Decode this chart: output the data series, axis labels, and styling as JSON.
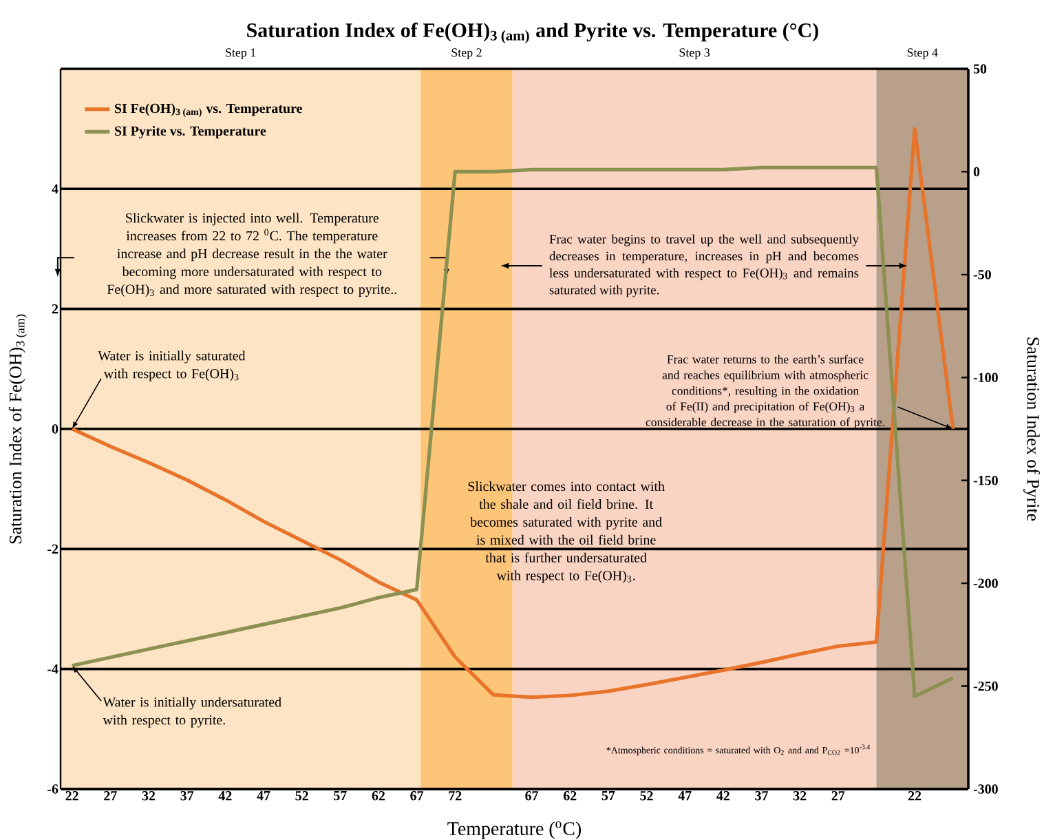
{
  "chart_data": {
    "type": "line",
    "title": "Saturation Index of Fe(OH)$_{3 (am)}$ and Pyrite vs. Temperature (°C)",
    "xlabel": "Temperature ($^{o}$C)",
    "ylabel": "Saturation Index of Fe(OH)$_{3 (am)}$",
    "y2label": "Saturation Index of Pyrite",
    "categories": [
      "22",
      "27",
      "32",
      "37",
      "42",
      "47",
      "52",
      "57",
      "62",
      "67",
      "72",
      null,
      "67",
      "62",
      "57",
      "52",
      "47",
      "42",
      "37",
      "32",
      "27",
      null,
      "22",
      null
    ],
    "ylim": [
      -6,
      6
    ],
    "yticks": [
      -6,
      -4,
      -2,
      0,
      2,
      4
    ],
    "y2lim": [
      -300,
      50
    ],
    "y2ticks": [
      -300,
      -250,
      -200,
      -150,
      -100,
      -50,
      0,
      50
    ],
    "grid": "y",
    "legend": "top left",
    "series": [
      {
        "name": "SI Fe(OH)$_{3 (am)}$ vs. Temperature",
        "color": "#e8732a",
        "values": [
          0,
          -0.29,
          -0.56,
          -0.85,
          -1.18,
          -1.54,
          -1.86,
          -2.18,
          -2.55,
          -2.85,
          -3.8,
          -4.43,
          -4.47,
          -4.44,
          -4.37,
          -4.26,
          -4.14,
          -4.02,
          -3.89,
          -3.75,
          -3.62,
          -3.55,
          5.0,
          0
        ]
      },
      {
        "name": "SI Pyrite vs. Temperature",
        "color": "#8c9152",
        "axis": "y2",
        "values": [
          -240,
          -236,
          -232,
          -228,
          -224,
          -220,
          -216,
          -212,
          -207,
          -203,
          0,
          0,
          1,
          1,
          1,
          1,
          1,
          1,
          2,
          2,
          2,
          2,
          -255,
          -246
        ]
      }
    ],
    "annotations": [
      "Water is initially saturated with respect to Fe(OH)$_{3}$",
      "Water is initially undersaturated with respect to pyrite.",
      "Slickwater is injected into well. Temperature increases from 22 to 72 $^{0}$C. The temperature increase and pH decrease result in the the water becoming more undersaturated with respect to Fe(OH)$_{3}$ and more saturated with respect to pyrite..",
      "Slickwater comes into contact with the shale and oil field brine. It becomes saturated with pyrite and is mixed with the oil field brine that is further undersaturated with respect to Fe(OH)$_{3}$.",
      "Frac water begins to travel up the well and subsequently decreases in temperature, increases in pH and becomes less undersaturated with respect to Fe(OH)$_{3}$ and remains saturated with pyrite.",
      "Frac water returns to the earth’s surface and reaches equilibrium with atmospheric conditions*, resulting in the oxidation of Fe(II) and precipitation of Fe(OH)$_{3}$ a considerable decrease in the saturation of pyrite.",
      "*Atmospheric conditions = saturated with O$_{2}$ and and P$_{CO2}$ =10$^{-3.4}$",
      "Step 1",
      "Step 2",
      "Step 3",
      "Step 4"
    ]
  }
}
